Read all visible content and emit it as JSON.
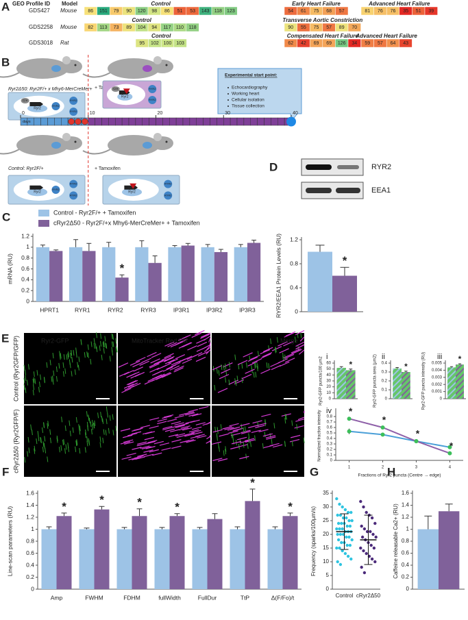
{
  "panel_a": {
    "label": "A",
    "headers": [
      "GEO Profile ID",
      "Model"
    ],
    "rows": [
      {
        "id": "GDS427",
        "model": "Mouse",
        "groups": [
          {
            "name": "Control",
            "values": [
              86,
              151,
              79,
              90,
              120,
              98,
              86,
              51,
              53,
              143,
              118,
              123
            ]
          },
          {
            "name": "Early Heart Failure",
            "values": [
              54,
              61,
              75,
              68,
              57
            ]
          },
          {
            "name": "Advanced Heart Failure",
            "values": [
              81,
              76,
              76,
              35,
              51,
              39
            ]
          }
        ]
      },
      {
        "id": "GDS2258",
        "model": "Mouse",
        "groups": [
          {
            "name": "Control",
            "values": [
              82,
              113,
              73,
              89,
              104,
              94,
              117,
              110,
              118
            ]
          },
          {
            "name": "Transverse Aortic Constriction",
            "values": [
              90,
              55,
              75,
              57,
              89,
              70
            ]
          }
        ]
      },
      {
        "id": "GDS3018",
        "model": "Rat",
        "groups": [
          {
            "name": "Control",
            "values": [
              95,
              102,
              100,
              103
            ]
          },
          {
            "name": "Compensated Heart Failure",
            "values": [
              62,
              42,
              69,
              69,
              126,
              34
            ]
          },
          {
            "name": "Advanced Heart Failure",
            "values": [
              59,
              57,
              64,
              43
            ]
          }
        ]
      }
    ]
  },
  "panel_b": {
    "label": "B",
    "cre_line": "Ryr2Δ50: Ryr2F/+ x Mhy6-MerCreMer+",
    "control_line": "Control: Ryr2F/+",
    "tamoxifen": "+ Tamoxifen",
    "start_title": "Experimental start point:",
    "start_items": [
      "Echocardiography",
      "Working heart",
      "Cellular isolation",
      "Tissue collection"
    ],
    "days": "days",
    "day_ticks": [
      0,
      10,
      20,
      30,
      40
    ],
    "cell_labels": {
      "nucleus": "Ryr2",
      "protein": "RYR2",
      "cre": "Cre"
    }
  },
  "panel_e": {
    "label": "E",
    "channels": [
      "Ryr2-GFP",
      "MitoTracker Red FM",
      "Merge"
    ],
    "rows": [
      "Control (Ryr2GFP/GFP)",
      "cRyr2Δ50 (Ryr2GFP/F)"
    ]
  },
  "chart_data": [
    {
      "type": "bar",
      "panel": "C",
      "y_label": "mRNA (RU)",
      "legend": true,
      "categories": [
        "HPRT1",
        "RYR1",
        "RYR2",
        "RYR3",
        "IP3R1",
        "IP3R2",
        "IP3R3"
      ],
      "ylim": [
        0,
        1.2
      ],
      "yticks": [
        0,
        0.2,
        0.4,
        0.6,
        0.8,
        1,
        1.2
      ],
      "series": [
        {
          "name": "Control - Ryr2F/+ + Tamoxifen",
          "color": "#9dc3e6",
          "values": [
            1,
            1,
            1,
            1,
            1,
            1,
            1
          ],
          "errors": [
            0.04,
            0.14,
            0.09,
            0.12,
            0.03,
            0.05,
            0.05
          ]
        },
        {
          "name": "cRyr2Δ50 - Ryr2F/+x Mhy6-MerCreMer+ + Tamoxifen",
          "color": "#80619a",
          "values": [
            0.93,
            0.93,
            0.44,
            0.71,
            1.03,
            0.91,
            1.08
          ],
          "errors": [
            0.02,
            0.14,
            0.05,
            0.13,
            0.04,
            0.05,
            0.05
          ],
          "significance": [
            null,
            null,
            "*",
            null,
            null,
            null,
            null
          ]
        }
      ]
    },
    {
      "type": "bar",
      "panel": "D",
      "y_label": "RYR2/EEA1 Protein Levels (RU)",
      "blot_labels": [
        "RYR2",
        "EEA1"
      ],
      "ylim": [
        0,
        1.2
      ],
      "yticks": [
        0,
        0.4,
        0.8,
        1.2
      ],
      "series": [
        {
          "color": "#9dc3e6",
          "values": [
            1
          ],
          "errors": [
            0.11
          ]
        },
        {
          "color": "#80619a",
          "values": [
            0.6
          ],
          "errors": [
            0.14
          ],
          "significance": [
            "*"
          ]
        }
      ]
    },
    {
      "type": "bar",
      "panel": "i",
      "y_label": "Ryr2-GFP puncta/100 µm2",
      "ylim": [
        0,
        60
      ],
      "yticks": [
        0,
        10,
        20,
        30,
        40,
        50,
        60
      ],
      "series": [
        {
          "color": "#66c56a",
          "hatch": "#9dc3e6",
          "values": [
            52
          ],
          "errors": [
            2
          ]
        },
        {
          "color": "#66c56a",
          "hatch": "#80619a",
          "values": [
            48
          ],
          "errors": [
            2
          ],
          "significance": [
            "*"
          ]
        }
      ]
    },
    {
      "type": "bar",
      "panel": "ii",
      "y_label": "Ryr2-GFP puncta area (µm2)",
      "ylim": [
        0,
        0.4
      ],
      "yticks": [
        0,
        0.1,
        0.2,
        0.3,
        0.4
      ],
      "series": [
        {
          "color": "#66c56a",
          "hatch": "#9dc3e6",
          "values": [
            0.34
          ],
          "errors": [
            0.01
          ]
        },
        {
          "color": "#66c56a",
          "hatch": "#80619a",
          "values": [
            0.3
          ],
          "errors": [
            0.01
          ],
          "significance": [
            "*"
          ]
        }
      ]
    },
    {
      "type": "bar",
      "panel": "iii",
      "y_label": "Ryr2-GFP puncta intensity (RU)",
      "ylim": [
        0,
        0.005
      ],
      "yticks": [
        0,
        0.001,
        0.002,
        0.003,
        0.004,
        0.005
      ],
      "series": [
        {
          "color": "#66c56a",
          "hatch": "#9dc3e6",
          "values": [
            0.0044
          ],
          "errors": [
            0.0001
          ]
        },
        {
          "color": "#66c56a",
          "hatch": "#80619a",
          "values": [
            0.0048
          ],
          "errors": [
            0.0001
          ],
          "significance": [
            "*"
          ]
        }
      ]
    },
    {
      "type": "line",
      "panel": "iv",
      "y_label": "Normalized fraction intensity",
      "x_label": "Fractions of Ryr2 puncta (Centre → edge)",
      "x": [
        1,
        2,
        3,
        4
      ],
      "xlim": [
        0.6,
        4.4
      ],
      "xticks": [
        1,
        2,
        3,
        4
      ],
      "ylim": [
        0,
        0.9
      ],
      "yticks": [
        0,
        0.1,
        0.2,
        0.3,
        0.4,
        0.5,
        0.6,
        0.7,
        0.8
      ],
      "series": [
        {
          "color": "#4a9fd8",
          "marker_color": "#3cbf5a",
          "values": [
            0.53,
            0.47,
            0.35,
            0.24
          ],
          "errors": [
            0.05,
            0.03,
            0.02,
            0.02
          ]
        },
        {
          "color": "#8e5fa8",
          "marker_color": "#3cbf5a",
          "values": [
            0.76,
            0.6,
            0.35,
            0.13
          ],
          "errors": [
            0.03,
            0.02,
            0.02,
            0.02
          ],
          "significance": [
            "*",
            "*",
            "*",
            "*"
          ]
        }
      ]
    },
    {
      "type": "bar",
      "panel": "F",
      "y_label": "Line-scan parameters (RU)",
      "categories": [
        "Amp",
        "FWHM",
        "FDHM",
        "fullWidth",
        "FullDur",
        "TtP",
        "Δ(F/Fo)/t"
      ],
      "ylim": [
        0,
        1.6
      ],
      "yticks": [
        0,
        0.2,
        0.4,
        0.6,
        0.8,
        1,
        1.2,
        1.4,
        1.6
      ],
      "series": [
        {
          "color": "#9dc3e6",
          "values": [
            1,
            1,
            1,
            1,
            1,
            1,
            1
          ],
          "errors": [
            0.04,
            0.02,
            0.03,
            0.03,
            0.03,
            0.04,
            0.04
          ]
        },
        {
          "color": "#80619a",
          "values": [
            1.22,
            1.33,
            1.22,
            1.22,
            1.17,
            1.47,
            1.22
          ],
          "errors": [
            0.05,
            0.05,
            0.12,
            0.04,
            0.09,
            0.2,
            0.05
          ],
          "significance": [
            "*",
            "*",
            "*",
            "*",
            null,
            "*",
            "*"
          ]
        }
      ]
    },
    {
      "type": "strip",
      "panel": "G",
      "y_label": "Frequency (sparks/100µm/s)",
      "categories": [
        "Control",
        "cRyr2Δ50"
      ],
      "ylim": [
        0,
        35
      ],
      "yticks": [
        0,
        5,
        10,
        15,
        20,
        25,
        30,
        35
      ],
      "series": [
        {
          "color": "#2ec4e0",
          "mean": 21,
          "sd": 6.5,
          "values": [
            33,
            31,
            30,
            29,
            28,
            28,
            27,
            27,
            26,
            26,
            25,
            25,
            24,
            24,
            24,
            23,
            23,
            22,
            22,
            22,
            21,
            21,
            21,
            20,
            20,
            20,
            19,
            19,
            18,
            18,
            17,
            17,
            16,
            16,
            15,
            15,
            14,
            13,
            12,
            11,
            10,
            9
          ]
        },
        {
          "color": "#4b2a7a",
          "mean": 18,
          "sd": 9,
          "values": [
            32,
            30,
            28,
            27,
            26,
            24,
            23,
            22,
            21,
            21,
            20,
            19,
            19,
            18,
            17,
            16,
            15,
            15,
            14,
            13,
            12,
            11,
            10,
            8,
            6
          ]
        }
      ]
    },
    {
      "type": "bar",
      "panel": "H",
      "y_label": "Caffeine releasable Ca2+ (RU)",
      "ylim": [
        0,
        1.6
      ],
      "yticks": [
        0,
        0.2,
        0.4,
        0.6,
        0.8,
        1,
        1.2,
        1.4,
        1.6
      ],
      "series": [
        {
          "color": "#9dc3e6",
          "values": [
            1
          ],
          "errors": [
            0.22
          ]
        },
        {
          "color": "#80619a",
          "values": [
            1.3
          ],
          "errors": [
            0.12
          ]
        }
      ]
    }
  ]
}
